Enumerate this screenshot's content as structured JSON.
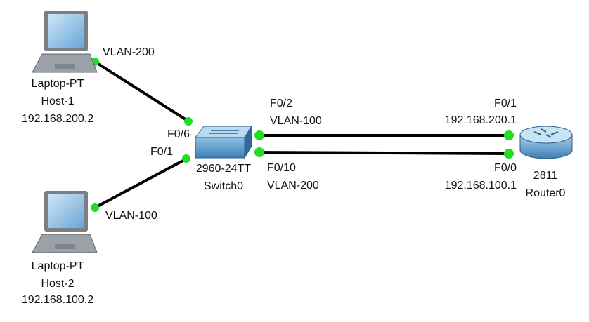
{
  "nodes": [
    {
      "type": "Laptop-PT",
      "name": "Host-1",
      "ip": "192.168.200.2"
    },
    {
      "type": "Laptop-PT",
      "name": "Host-2",
      "ip": "192.168.100.2"
    },
    {
      "model": "2960-24TT",
      "name": "Switch0"
    },
    {
      "model": "2811",
      "name": "Router0"
    }
  ],
  "links": [
    {
      "host_side": "VLAN-200",
      "switch_port": "F0/6"
    },
    {
      "host_side": "VLAN-100",
      "switch_port": "F0/1"
    },
    {
      "switch_port": "F0/2",
      "switch_vlan": "VLAN-100",
      "router_port": "F0/1",
      "router_ip": "192.168.200.1"
    },
    {
      "switch_port": "F0/10",
      "switch_vlan": "VLAN-200",
      "router_port": "F0/0",
      "router_ip": "192.168.100.1"
    }
  ]
}
